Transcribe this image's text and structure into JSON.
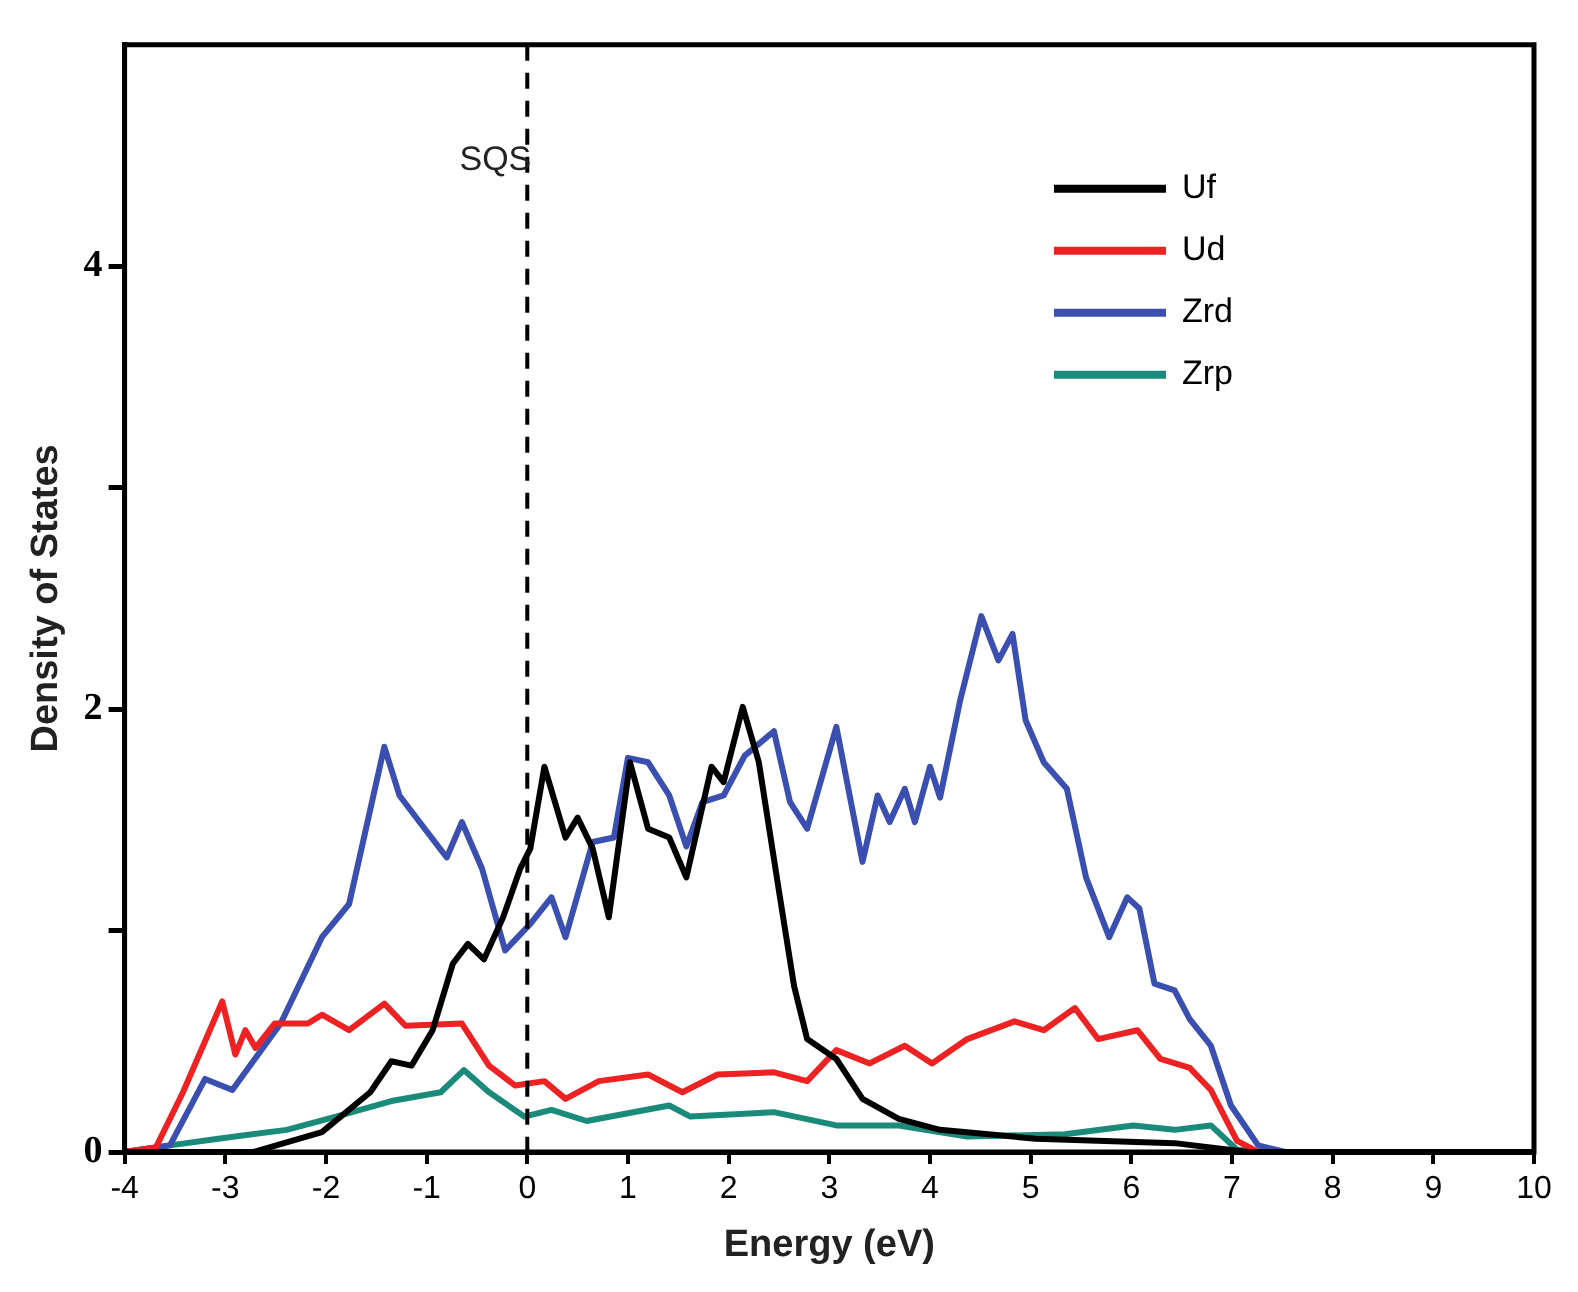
{
  "chart_data": {
    "type": "line",
    "xlabel": "Energy (eV)",
    "ylabel": "Density of States",
    "xlim": [
      -4,
      10
    ],
    "xticks": [
      -4,
      -3,
      -2,
      -1,
      0,
      1,
      2,
      3,
      4,
      5,
      6,
      7,
      8,
      9,
      10
    ],
    "ylim": [
      0,
      5
    ],
    "yticks": [
      0,
      {
        "value": 1,
        "label": null
      },
      2,
      {
        "value": 3,
        "label": null
      },
      4
    ],
    "grid": false,
    "legend": "top right",
    "marker": "none",
    "line_style": "solid",
    "ref_lines": [
      {
        "axis": "x",
        "value": 0,
        "label": "SQS",
        "line_style": "dashed",
        "color": "#000000"
      }
    ],
    "series": [
      {
        "name": "Uf",
        "color": "#000000",
        "x": [
          -4,
          -2.72,
          -2.04,
          -1.56,
          -1.35,
          -1.15,
          -0.94,
          -0.74,
          -0.59,
          -0.43,
          -0.24,
          -0.07,
          0.03,
          0.17,
          0.38,
          0.5,
          0.65,
          0.81,
          1.02,
          1.2,
          1.41,
          1.58,
          1.83,
          1.95,
          2.14,
          2.3,
          2.51,
          2.65,
          2.78,
          3.07,
          3.33,
          3.69,
          4.1,
          5.05,
          6.43,
          7.16,
          10
        ],
        "values": [
          0,
          0,
          0.09,
          0.27,
          0.41,
          0.39,
          0.55,
          0.85,
          0.94,
          0.87,
          1.06,
          1.28,
          1.37,
          1.74,
          1.42,
          1.51,
          1.37,
          1.06,
          1.76,
          1.46,
          1.42,
          1.24,
          1.74,
          1.67,
          2.01,
          1.76,
          1.15,
          0.75,
          0.51,
          0.42,
          0.24,
          0.15,
          0.1,
          0.06,
          0.04,
          0,
          0
        ]
      },
      {
        "name": "Ud",
        "color": "#ee2222",
        "x": [
          -4,
          -3.69,
          -3.42,
          -3.03,
          -2.9,
          -2.8,
          -2.7,
          -2.51,
          -2.18,
          -2.04,
          -1.77,
          -1.42,
          -1.21,
          -0.65,
          -0.38,
          -0.12,
          0.17,
          0.38,
          0.71,
          1.2,
          1.54,
          1.89,
          2.45,
          2.78,
          3.07,
          3.4,
          3.75,
          4.02,
          4.37,
          4.84,
          5.13,
          5.44,
          5.67,
          6.06,
          6.29,
          6.58,
          6.79,
          7.05,
          7.26,
          10
        ],
        "values": [
          0,
          0.02,
          0.27,
          0.68,
          0.44,
          0.55,
          0.47,
          0.58,
          0.58,
          0.62,
          0.55,
          0.67,
          0.57,
          0.58,
          0.39,
          0.3,
          0.32,
          0.24,
          0.32,
          0.35,
          0.27,
          0.35,
          0.36,
          0.32,
          0.46,
          0.4,
          0.48,
          0.4,
          0.51,
          0.59,
          0.55,
          0.65,
          0.51,
          0.55,
          0.42,
          0.38,
          0.28,
          0.05,
          0,
          0
        ]
      },
      {
        "name": "Zrd",
        "color": "#3b4fb0",
        "x": [
          -4,
          -3.55,
          -3.2,
          -2.93,
          -2.45,
          -2.04,
          -1.77,
          -1.42,
          -1.27,
          -1.07,
          -0.8,
          -0.65,
          -0.45,
          -0.22,
          0.03,
          0.24,
          0.38,
          0.65,
          0.86,
          1.0,
          1.2,
          1.41,
          1.58,
          1.74,
          1.95,
          2.16,
          2.45,
          2.61,
          2.78,
          3.07,
          3.33,
          3.48,
          3.6,
          3.75,
          3.85,
          4.0,
          4.1,
          4.3,
          4.51,
          4.68,
          4.82,
          4.95,
          5.13,
          5.36,
          5.55,
          5.78,
          5.96,
          6.08,
          6.23,
          6.43,
          6.58,
          6.79,
          6.99,
          7.26,
          7.53,
          10
        ],
        "values": [
          0,
          0.03,
          0.33,
          0.28,
          0.58,
          0.97,
          1.12,
          1.83,
          1.61,
          1.49,
          1.33,
          1.49,
          1.28,
          0.91,
          1.03,
          1.15,
          0.97,
          1.4,
          1.42,
          1.78,
          1.76,
          1.61,
          1.38,
          1.58,
          1.61,
          1.79,
          1.9,
          1.58,
          1.46,
          1.92,
          1.31,
          1.61,
          1.49,
          1.64,
          1.49,
          1.74,
          1.6,
          2.04,
          2.42,
          2.22,
          2.34,
          1.95,
          1.76,
          1.64,
          1.24,
          0.97,
          1.15,
          1.1,
          0.76,
          0.73,
          0.6,
          0.48,
          0.21,
          0.03,
          0,
          0
        ]
      },
      {
        "name": "Zrp",
        "color": "#1a8a7a",
        "x": [
          -4,
          -3.55,
          -3.07,
          -2.39,
          -1.9,
          -1.35,
          -0.86,
          -0.63,
          -0.38,
          -0.03,
          0.24,
          0.59,
          1.41,
          1.62,
          2.45,
          3.07,
          3.69,
          4.37,
          5.34,
          6.02,
          6.43,
          6.79,
          7.05,
          7.3,
          10
        ],
        "values": [
          0,
          0.03,
          0.06,
          0.1,
          0.16,
          0.23,
          0.27,
          0.37,
          0.27,
          0.16,
          0.19,
          0.14,
          0.21,
          0.16,
          0.18,
          0.12,
          0.12,
          0.07,
          0.08,
          0.12,
          0.1,
          0.12,
          0.01,
          0,
          0
        ]
      }
    ]
  }
}
